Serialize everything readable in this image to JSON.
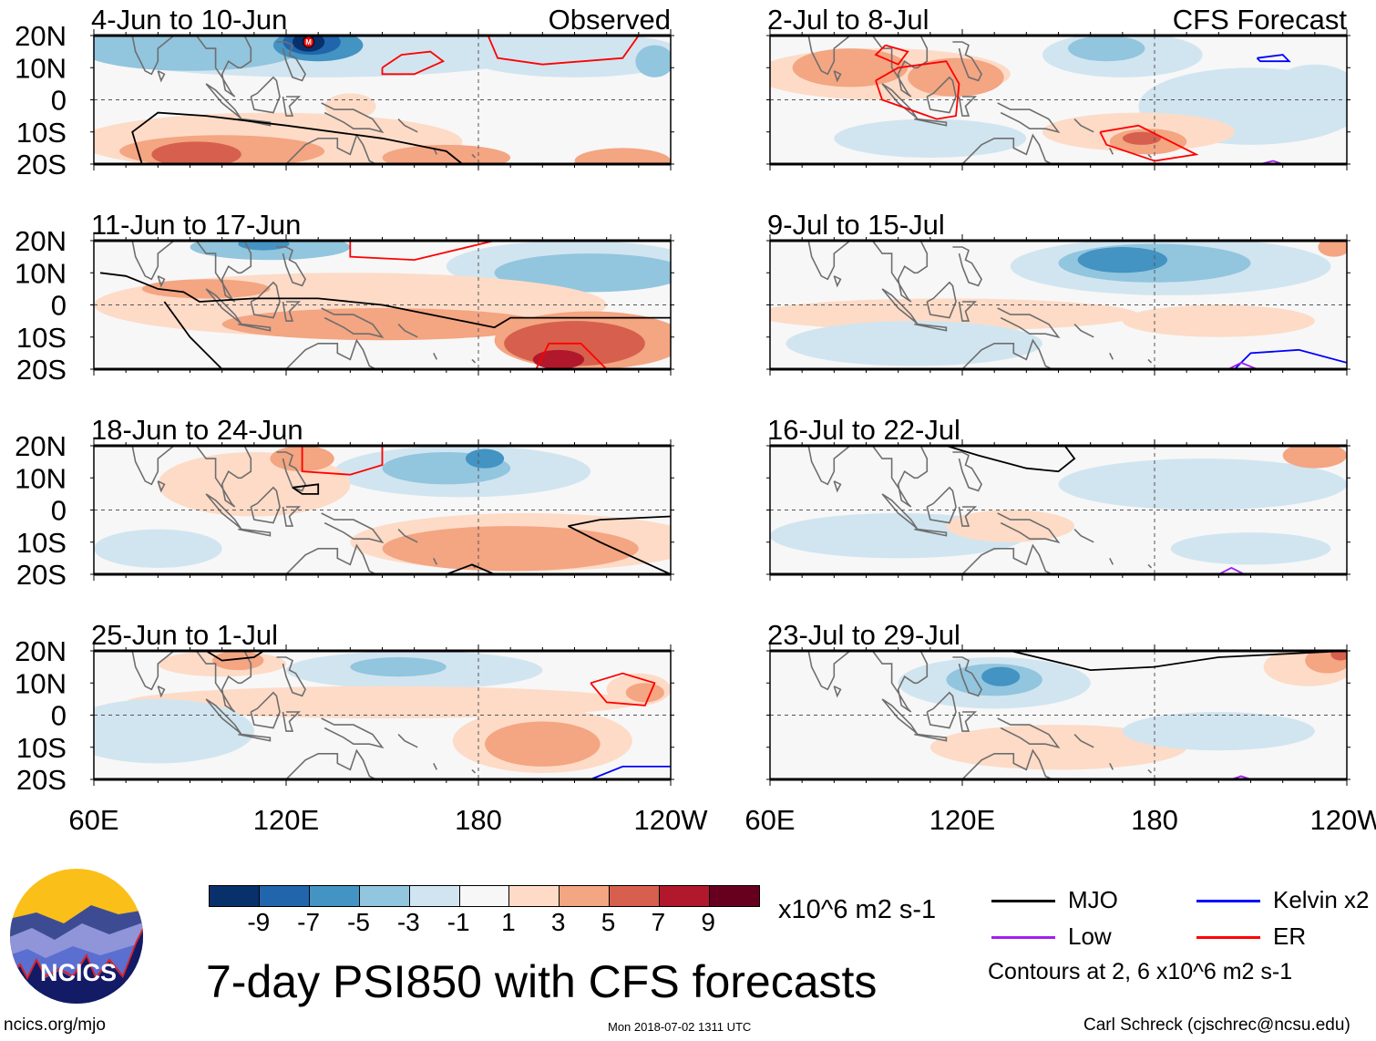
{
  "title": "7-day PSI850 with CFS forecasts",
  "footer": {
    "left": "ncics.org/mjo",
    "center": "Mon 2018-07-02 1311 UTC",
    "right": "Carl Schreck (cjschrec@ncsu.edu)"
  },
  "logo": {
    "text": "NCICS"
  },
  "axes": {
    "lat_labels": [
      "20N",
      "10N",
      "0",
      "10S",
      "20S"
    ],
    "lon_labels": [
      "60E",
      "120E",
      "180",
      "120W"
    ]
  },
  "colorbar": {
    "units": "x10^6 m2 s-1",
    "labels": [
      "-9",
      "-7",
      "-5",
      "-3",
      "-1",
      "1",
      "3",
      "5",
      "7",
      "9"
    ],
    "colors": [
      "#08306b",
      "#2166ac",
      "#4393c3",
      "#92c5de",
      "#d1e5f0",
      "#f7f7f7",
      "#fddbc7",
      "#f4a582",
      "#d6604d",
      "#b2182b",
      "#67001f"
    ]
  },
  "legend": {
    "items": [
      {
        "label": "MJO",
        "color": "#000000"
      },
      {
        "label": "Kelvin x2",
        "color": "#0000ff"
      },
      {
        "label": "Low",
        "color": "#a020f0"
      },
      {
        "label": "ER",
        "color": "#ff0000"
      }
    ],
    "note": "Contours at 2, 6 x10^6 m2 s-1"
  },
  "panels": [
    {
      "label": "4-Jun to 10-Jun",
      "tag": "Observed",
      "storm_marker": "M",
      "blobs": [
        [
          130,
          15,
          70,
          8,
          -1
        ],
        [
          90,
          16,
          35,
          7,
          -3
        ],
        [
          130,
          17,
          14,
          5,
          -5
        ],
        [
          128,
          18,
          9,
          4,
          -7
        ],
        [
          127,
          18,
          5,
          3,
          -9
        ],
        [
          210,
          14,
          35,
          7,
          -1
        ],
        [
          235,
          12,
          6,
          5,
          -3
        ],
        [
          115,
          -13,
          60,
          9,
          1
        ],
        [
          100,
          -16,
          32,
          5,
          3
        ],
        [
          92,
          -17,
          14,
          4,
          5
        ],
        [
          170,
          -18,
          20,
          4,
          3
        ],
        [
          225,
          -19,
          15,
          4,
          3
        ],
        [
          140,
          -2,
          8,
          4,
          1
        ]
      ],
      "contours": [
        {
          "type": "MJO",
          "pts": [
            [
              75,
              -20
            ],
            [
              72,
              -10
            ],
            [
              80,
              -4
            ],
            [
              95,
              -5
            ],
            [
              120,
              -8
            ],
            [
              150,
              -12
            ],
            [
              170,
              -16
            ],
            [
              175,
              -20
            ]
          ]
        },
        {
          "type": "ER",
          "pts": [
            [
              150,
              10
            ],
            [
              156,
              14
            ],
            [
              165,
              15
            ],
            [
              169,
              12
            ],
            [
              160,
              8
            ],
            [
              150,
              8
            ],
            [
              150,
              10
            ]
          ]
        },
        {
          "type": "ER",
          "pts": [
            [
              183,
              20
            ],
            [
              186,
              13
            ],
            [
              200,
              11
            ],
            [
              225,
              13
            ],
            [
              230,
              20
            ]
          ]
        }
      ]
    },
    {
      "label": "2-Jul to 8-Jul",
      "tag": "CFS Forecast",
      "blobs": [
        [
          95,
          8,
          40,
          8,
          1
        ],
        [
          85,
          10,
          18,
          6,
          3
        ],
        [
          118,
          7,
          15,
          6,
          3
        ],
        [
          170,
          14,
          25,
          7,
          -1
        ],
        [
          165,
          16,
          12,
          4,
          -3
        ],
        [
          210,
          -2,
          35,
          12,
          -1
        ],
        [
          110,
          -12,
          30,
          6,
          -1
        ],
        [
          175,
          -10,
          30,
          6,
          1
        ],
        [
          178,
          -13,
          12,
          4,
          3
        ],
        [
          176,
          -12,
          6,
          2,
          5
        ],
        [
          230,
          5,
          12,
          6,
          -1
        ]
      ],
      "contours": [
        {
          "type": "ER",
          "pts": [
            [
              96,
              17
            ],
            [
              103,
              15
            ],
            [
              100,
              11
            ],
            [
              93,
              14
            ],
            [
              96,
              17
            ]
          ]
        },
        {
          "type": "ER",
          "pts": [
            [
              93,
              6
            ],
            [
              95,
              0
            ],
            [
              112,
              -6
            ],
            [
              118,
              -5
            ],
            [
              119,
              5
            ],
            [
              115,
              12
            ],
            [
              100,
              10
            ],
            [
              93,
              6
            ]
          ]
        },
        {
          "type": "ER",
          "pts": [
            [
              163,
              -10
            ],
            [
              175,
              -8
            ],
            [
              193,
              -17
            ],
            [
              180,
              -19
            ],
            [
              165,
              -14
            ],
            [
              163,
              -10
            ]
          ]
        },
        {
          "type": "Kelvin",
          "pts": [
            [
              212,
              13
            ],
            [
              220,
              14
            ],
            [
              222,
              12
            ],
            [
              213,
              12
            ],
            [
              212,
              13
            ]
          ]
        },
        {
          "type": "Low",
          "pts": [
            [
              213,
              -20
            ],
            [
              217,
              -19
            ],
            [
              220,
              -20
            ]
          ]
        }
      ]
    },
    {
      "label": "11-Jun to 17-Jun",
      "tag": "",
      "blobs": [
        [
          115,
          18,
          25,
          4,
          -3
        ],
        [
          113,
          19,
          8,
          2,
          -5
        ],
        [
          210,
          12,
          40,
          8,
          -1
        ],
        [
          215,
          10,
          30,
          6,
          -3
        ],
        [
          140,
          0,
          80,
          10,
          1
        ],
        [
          150,
          -6,
          50,
          5,
          3
        ],
        [
          215,
          -11,
          30,
          9,
          3
        ],
        [
          210,
          -12,
          22,
          7,
          5
        ],
        [
          205,
          -17,
          8,
          3,
          7
        ],
        [
          95,
          5,
          20,
          3,
          3
        ]
      ],
      "contours": [
        {
          "type": "MJO",
          "pts": [
            [
              62,
              10
            ],
            [
              70,
              9
            ],
            [
              80,
              5
            ],
            [
              88,
              4
            ],
            [
              93,
              1
            ],
            [
              110,
              2
            ],
            [
              130,
              2
            ],
            [
              150,
              0
            ],
            [
              175,
              -5
            ],
            [
              185,
              -7
            ],
            [
              190,
              -4
            ],
            [
              240,
              -4
            ]
          ]
        },
        {
          "type": "MJO",
          "pts": [
            [
              82,
              1
            ],
            [
              90,
              -10
            ],
            [
              100,
              -20
            ]
          ]
        },
        {
          "type": "ER",
          "pts": [
            [
              140,
              20
            ],
            [
              140,
              15
            ],
            [
              160,
              14
            ],
            [
              185,
              20
            ]
          ]
        },
        {
          "type": "ER",
          "pts": [
            [
              198,
              -20
            ],
            [
              202,
              -12
            ],
            [
              212,
              -12
            ],
            [
              220,
              -20
            ]
          ]
        }
      ]
    },
    {
      "label": "9-Jul to 15-Jul",
      "tag": "",
      "blobs": [
        [
          185,
          12,
          50,
          9,
          -1
        ],
        [
          180,
          13,
          30,
          6,
          -3
        ],
        [
          170,
          14,
          14,
          4,
          -5
        ],
        [
          115,
          -3,
          60,
          5,
          1
        ],
        [
          105,
          -12,
          40,
          7,
          -1
        ],
        [
          200,
          -5,
          30,
          5,
          1
        ],
        [
          236,
          18,
          5,
          3,
          3
        ]
      ],
      "contours": [
        {
          "type": "Kelvin",
          "pts": [
            [
              205,
              -20
            ],
            [
              210,
              -15
            ],
            [
              225,
              -14
            ],
            [
              240,
              -18
            ]
          ]
        },
        {
          "type": "Low",
          "pts": [
            [
              203,
              -20
            ],
            [
              207,
              -18
            ],
            [
              212,
              -20
            ]
          ]
        }
      ]
    },
    {
      "label": "18-Jun to 24-Jun",
      "tag": "",
      "blobs": [
        [
          175,
          12,
          40,
          8,
          -1
        ],
        [
          170,
          13,
          20,
          5,
          -3
        ],
        [
          182,
          16,
          6,
          3,
          -5
        ],
        [
          110,
          8,
          30,
          10,
          1
        ],
        [
          125,
          16,
          10,
          4,
          3
        ],
        [
          195,
          -10,
          55,
          9,
          1
        ],
        [
          190,
          -12,
          40,
          7,
          3
        ],
        [
          80,
          -12,
          20,
          6,
          -1
        ]
      ],
      "contours": [
        {
          "type": "MJO",
          "pts": [
            [
              122,
              7
            ],
            [
              125,
              5
            ],
            [
              130,
              5
            ],
            [
              130,
              8
            ],
            [
              122,
              7
            ]
          ]
        },
        {
          "type": "MJO",
          "pts": [
            [
              208,
              -5
            ],
            [
              218,
              -3
            ],
            [
              240,
              -2
            ]
          ]
        },
        {
          "type": "MJO",
          "pts": [
            [
              208,
              -5
            ],
            [
              218,
              -10
            ],
            [
              240,
              -20
            ]
          ]
        },
        {
          "type": "MJO",
          "pts": [
            [
              170,
              -20
            ],
            [
              178,
              -17
            ],
            [
              185,
              -20
            ]
          ]
        },
        {
          "type": "ER",
          "pts": [
            [
              125,
              20
            ],
            [
              125,
              12
            ],
            [
              140,
              11
            ],
            [
              150,
              14
            ],
            [
              150,
              20
            ]
          ]
        }
      ]
    },
    {
      "label": "16-Jul to 22-Jul",
      "tag": "",
      "blobs": [
        [
          195,
          8,
          45,
          8,
          -1
        ],
        [
          100,
          -8,
          40,
          7,
          -1
        ],
        [
          135,
          -5,
          20,
          5,
          1
        ],
        [
          230,
          17,
          10,
          4,
          3
        ],
        [
          210,
          -12,
          25,
          5,
          -1
        ]
      ],
      "contours": [
        {
          "type": "MJO",
          "pts": [
            [
              115,
              20
            ],
            [
              125,
              17
            ],
            [
              140,
              13
            ],
            [
              150,
              12
            ],
            [
              155,
              16
            ],
            [
              152,
              20
            ]
          ]
        },
        {
          "type": "Low",
          "pts": [
            [
              200,
              -20
            ],
            [
              204,
              -18
            ],
            [
              208,
              -20
            ]
          ]
        }
      ]
    },
    {
      "label": "25-Jun to 1-Jul",
      "tag": "",
      "blobs": [
        [
          160,
          14,
          40,
          6,
          -1
        ],
        [
          155,
          15,
          15,
          3,
          -3
        ],
        [
          100,
          16,
          20,
          4,
          1
        ],
        [
          105,
          17,
          8,
          3,
          3
        ],
        [
          150,
          4,
          80,
          5,
          1
        ],
        [
          200,
          -8,
          28,
          10,
          1
        ],
        [
          200,
          -9,
          18,
          7,
          3
        ],
        [
          80,
          -5,
          30,
          10,
          -1
        ],
        [
          230,
          8,
          10,
          5,
          1
        ],
        [
          232,
          7,
          6,
          3,
          3
        ]
      ],
      "contours": [
        {
          "type": "MJO",
          "pts": [
            [
              95,
              20
            ],
            [
              100,
              17
            ],
            [
              110,
              18
            ],
            [
              113,
              20
            ]
          ]
        },
        {
          "type": "MJO",
          "pts": [
            [
              150,
              20
            ],
            [
              165,
              20
            ]
          ]
        },
        {
          "type": "ER",
          "pts": [
            [
              215,
              10
            ],
            [
              225,
              13
            ],
            [
              235,
              10
            ],
            [
              232,
              3
            ],
            [
              220,
              4
            ],
            [
              215,
              10
            ]
          ]
        },
        {
          "type": "Kelvin",
          "pts": [
            [
              215,
              -20
            ],
            [
              225,
              -16
            ],
            [
              240,
              -16
            ]
          ]
        }
      ]
    },
    {
      "label": "23-Jul to 29-Jul",
      "tag": "",
      "blobs": [
        [
          130,
          10,
          30,
          8,
          -1
        ],
        [
          130,
          11,
          15,
          5,
          -3
        ],
        [
          132,
          12,
          6,
          3,
          -5
        ],
        [
          150,
          -10,
          40,
          7,
          1
        ],
        [
          228,
          15,
          14,
          6,
          1
        ],
        [
          234,
          17,
          7,
          4,
          3
        ],
        [
          238,
          19,
          3,
          2,
          5
        ],
        [
          200,
          -5,
          30,
          6,
          -1
        ]
      ],
      "contours": [
        {
          "type": "MJO",
          "pts": [
            [
              135,
              20
            ],
            [
              160,
              14
            ],
            [
              180,
              15
            ],
            [
              200,
              18
            ],
            [
              240,
              20
            ]
          ]
        },
        {
          "type": "Low",
          "pts": [
            [
              204,
              -20
            ],
            [
              207,
              -19
            ],
            [
              210,
              -20
            ]
          ]
        }
      ]
    }
  ]
}
